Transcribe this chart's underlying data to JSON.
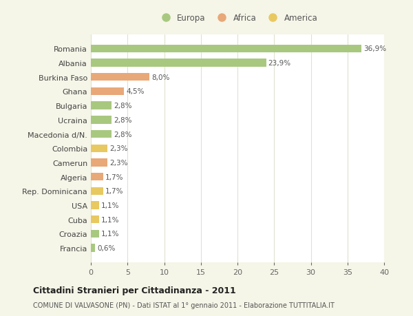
{
  "countries": [
    "Romania",
    "Albania",
    "Burkina Faso",
    "Ghana",
    "Bulgaria",
    "Ucraina",
    "Macedonia d/N.",
    "Colombia",
    "Camerun",
    "Algeria",
    "Rep. Dominicana",
    "USA",
    "Cuba",
    "Croazia",
    "Francia"
  ],
  "values": [
    36.9,
    23.9,
    8.0,
    4.5,
    2.8,
    2.8,
    2.8,
    2.3,
    2.3,
    1.7,
    1.7,
    1.1,
    1.1,
    1.1,
    0.6
  ],
  "labels": [
    "36,9%",
    "23,9%",
    "8,0%",
    "4,5%",
    "2,8%",
    "2,8%",
    "2,8%",
    "2,3%",
    "2,3%",
    "1,7%",
    "1,7%",
    "1,1%",
    "1,1%",
    "1,1%",
    "0,6%"
  ],
  "continent": [
    "Europa",
    "Europa",
    "Africa",
    "Africa",
    "Europa",
    "Europa",
    "Europa",
    "America",
    "Africa",
    "Africa",
    "America",
    "America",
    "America",
    "Europa",
    "Europa"
  ],
  "colors": {
    "Europa": "#a8c880",
    "Africa": "#e8a878",
    "America": "#e8c860"
  },
  "legend_order": [
    "Europa",
    "Africa",
    "America"
  ],
  "xlim": [
    0,
    40
  ],
  "xticks": [
    0,
    5,
    10,
    15,
    20,
    25,
    30,
    35,
    40
  ],
  "title": "Cittadini Stranieri per Cittadinanza - 2011",
  "subtitle": "COMUNE DI VALVASONE (PN) - Dati ISTAT al 1° gennaio 2011 - Elaborazione TUTTITALIA.IT",
  "bg_color": "#f5f5e8",
  "plot_bg_color": "#ffffff",
  "grid_color": "#e0e0d0"
}
